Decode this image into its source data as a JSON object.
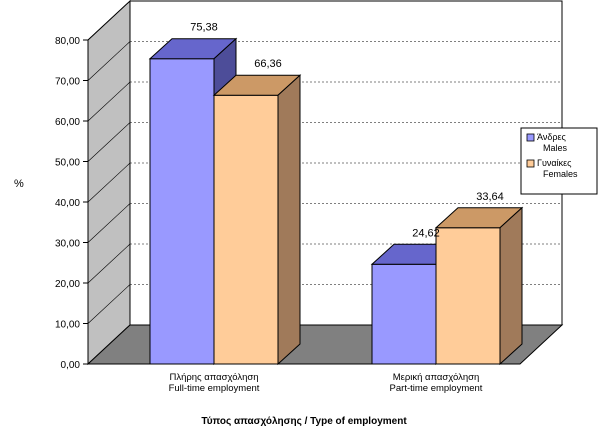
{
  "chart_data": {
    "type": "bar",
    "title": "",
    "xlabel": "Τύπος απασχόλησης / Type of employment",
    "ylabel": "%",
    "ylim": [
      0,
      80
    ],
    "ytick_step": 10,
    "ytick_labels": [
      "0,00",
      "10,00",
      "20,00",
      "30,00",
      "40,00",
      "50,00",
      "60,00",
      "70,00",
      "80,00"
    ],
    "categories": [
      [
        "Πλήρης απασχόληση",
        "Full-time employment"
      ],
      [
        "Μερική απασχόληση",
        "Part-time employment"
      ]
    ],
    "series": [
      {
        "name": [
          "Άνδρες",
          "Males"
        ],
        "values": [
          75.38,
          24.62
        ],
        "labels": [
          "75,38",
          "24,62"
        ],
        "color": "#9999ff",
        "top_color": "#6666cc",
        "side_color": "#4d4d99"
      },
      {
        "name": [
          "Γυναίκες",
          "Females"
        ],
        "values": [
          66.36,
          33.64
        ],
        "labels": [
          "66,36",
          "33,64"
        ],
        "color": "#ffcc99",
        "top_color": "#cc9966",
        "side_color": "#a07a5a"
      }
    ],
    "legend_position": "right",
    "grid": true,
    "style": "3d",
    "wall_color": "#c0c0c0",
    "floor_color": "#808080"
  }
}
